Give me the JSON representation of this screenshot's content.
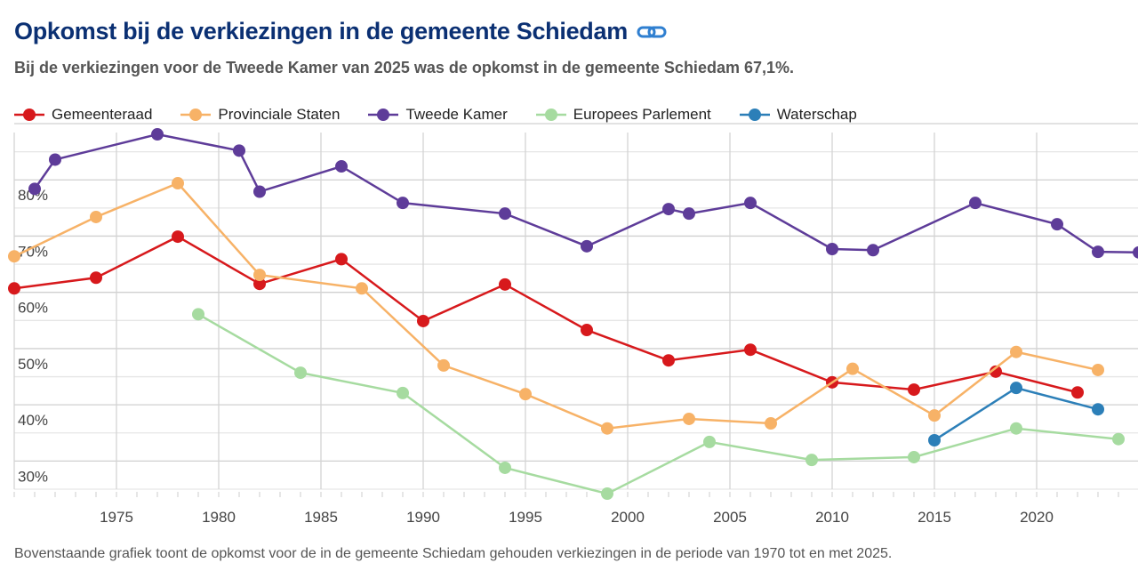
{
  "title": "Opkomst bij de verkiezingen in de gemeente Schiedam",
  "title_icon": "link-icon",
  "subtitle": "Bij de verkiezingen voor de Tweede Kamer van 2025 was de opkomst in de gemeente Schiedam 67,1%.",
  "footer": "Bovenstaande grafiek toont de opkomst voor de in de gemeente Schiedam gehouden verkiezingen in de periode van 1970 tot en met 2025.",
  "chart_data": {
    "type": "line",
    "title": "",
    "xlabel": "",
    "ylabel": "",
    "xlim": [
      1970,
      2025
    ],
    "ylim": [
      25,
      90
    ],
    "x_ticks": [
      "1975",
      "1980",
      "1985",
      "1990",
      "1995",
      "2000",
      "2005",
      "2010",
      "2015",
      "2020"
    ],
    "y_ticks": [
      "30%",
      "40%",
      "50%",
      "60%",
      "70%",
      "80%"
    ],
    "grid": true,
    "legend": "top",
    "series": [
      {
        "name": "Gemeenteraad",
        "color": "#d7191c",
        "x": [
          1970,
          1974,
          1978,
          1982,
          1986,
          1990,
          1994,
          1998,
          2002,
          2006,
          2010,
          2014,
          2018,
          2022
        ],
        "values": [
          60.7,
          62.6,
          69.9,
          61.5,
          65.9,
          54.9,
          61.4,
          53.3,
          47.9,
          49.8,
          44.0,
          42.7,
          45.9,
          42.2
        ]
      },
      {
        "name": "Provinciale Staten",
        "color": "#f7b267",
        "x": [
          1970,
          1974,
          1978,
          1982,
          1987,
          1991,
          1995,
          1999,
          2003,
          2007,
          2011,
          2015,
          2019,
          2023
        ],
        "values": [
          66.4,
          73.4,
          79.4,
          63.1,
          60.7,
          47.0,
          41.9,
          35.8,
          37.5,
          36.7,
          46.4,
          38.1,
          49.4,
          46.2
        ]
      },
      {
        "name": "Tweede Kamer",
        "color": "#5e3c99",
        "x": [
          1971,
          1972,
          1977,
          1981,
          1982,
          1986,
          1989,
          1994,
          1998,
          2002,
          2003,
          2006,
          2010,
          2012,
          2017,
          2021,
          2023,
          2025
        ],
        "values": [
          78.4,
          83.6,
          88.1,
          85.2,
          77.9,
          82.4,
          75.9,
          74.0,
          68.2,
          74.8,
          74.0,
          75.9,
          67.7,
          67.5,
          75.9,
          72.1,
          67.2,
          67.1
        ]
      },
      {
        "name": "Europees Parlement",
        "color": "#a6dba0",
        "x": [
          1979,
          1984,
          1989,
          1994,
          1999,
          2004,
          2009,
          2014,
          2019,
          2024
        ],
        "values": [
          56.1,
          45.7,
          42.1,
          28.8,
          24.2,
          33.4,
          30.2,
          30.7,
          35.8,
          33.9
        ]
      },
      {
        "name": "Waterschap",
        "color": "#2c7fb8",
        "x": [
          2015,
          2019,
          2023
        ],
        "values": [
          33.7,
          43.0,
          39.2
        ]
      }
    ]
  }
}
